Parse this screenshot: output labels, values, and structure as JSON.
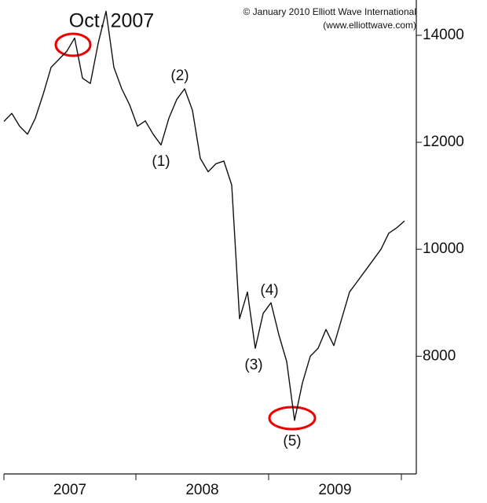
{
  "chart_data": {
    "type": "line",
    "title": "Oct. 2007",
    "credit": [
      "© January 2010 Elliott Wave International",
      "(www.elliottwave.com)"
    ],
    "x_axis_labels": [
      "2007",
      "2008",
      "2009"
    ],
    "annotations": [
      "(1)",
      "(2)",
      "(3)",
      "(4)",
      "(5)"
    ],
    "color": "#111111",
    "values": [
      12390,
      12540,
      12300,
      12150,
      12450,
      12900,
      13400,
      13550,
      13700,
      13950,
      13200,
      13100,
      13850,
      14450,
      13400,
      13000,
      12700,
      12300,
      12400,
      12150,
      11950,
      12450,
      12800,
      13000,
      12600,
      11700,
      11450,
      11600,
      11650,
      11200,
      8700,
      9200,
      8150,
      8800,
      9000,
      8400,
      7900,
      6800,
      7500,
      8000,
      8150,
      8500,
      8200,
      8700,
      9200,
      9400,
      9600,
      9800,
      10000,
      10300,
      10400,
      10530
    ],
    "ylim": [
      5800,
      14660
    ],
    "yticks": [
      8000,
      10000,
      12000,
      14000
    ]
  }
}
